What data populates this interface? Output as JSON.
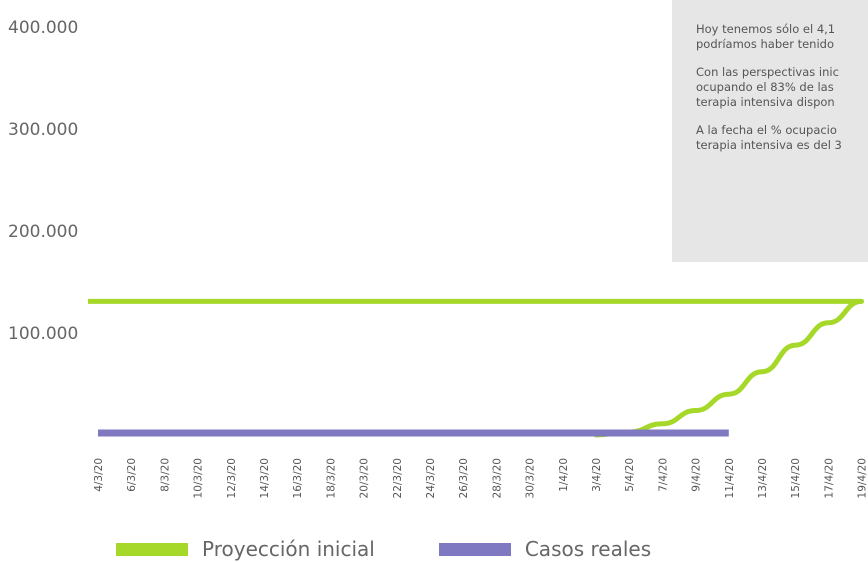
{
  "chart_data": {
    "type": "line",
    "y_ticks": [
      "400.000",
      "300.000",
      "200.000",
      "100.000"
    ],
    "ylim": [
      0,
      400000
    ],
    "x_dates": [
      "4/3/20",
      "6/3/20",
      "8/3/20",
      "10/3/20",
      "12/3/20",
      "14/3/20",
      "16/3/20",
      "18/3/20",
      "20/3/20",
      "22/3/20",
      "24/3/20",
      "26/3/20",
      "28/3/20",
      "30/3/20",
      "1/4/20",
      "3/4/20",
      "5/4/20",
      "7/4/20",
      "9/4/20",
      "11/4/20",
      "13/4/20",
      "15/4/20",
      "17/4/20",
      "19/4/20"
    ],
    "series": [
      {
        "name": "Proyección inicial",
        "color": "#a6d82a",
        "style": "flat-line",
        "value": 131000
      },
      {
        "name": "Proyección inicial",
        "color": "#a6d82a",
        "style": "curve",
        "points": [
          [
            "3/4/20",
            0
          ],
          [
            "5/4/20",
            3000
          ],
          [
            "7/4/20",
            11000
          ],
          [
            "9/4/20",
            24000
          ],
          [
            "11/4/20",
            40000
          ],
          [
            "13/4/20",
            62000
          ],
          [
            "15/4/20",
            88000
          ],
          [
            "17/4/20",
            110000
          ],
          [
            "19/4/20",
            131000
          ]
        ]
      },
      {
        "name": "Casos reales",
        "color": "#7f79c2",
        "points": [
          [
            "4/3/20",
            2000
          ],
          [
            "11/4/20",
            2000
          ]
        ]
      }
    ],
    "legend": [
      {
        "label": "Proyección inicial",
        "color": "#a6d82a"
      },
      {
        "label": "Casos reales",
        "color": "#7f79c2"
      }
    ],
    "legend_position": "bottom"
  },
  "note": {
    "paragraphs": [
      [
        "Hoy tenemos sólo el 4,1",
        "podríamos haber tenido"
      ],
      [
        "Con las perspectivas inic",
        "ocupando el 83% de las",
        "terapia intensiva dispon"
      ],
      [
        "A la fecha el % ocupacio",
        "terapia intensiva es del 3"
      ]
    ]
  }
}
